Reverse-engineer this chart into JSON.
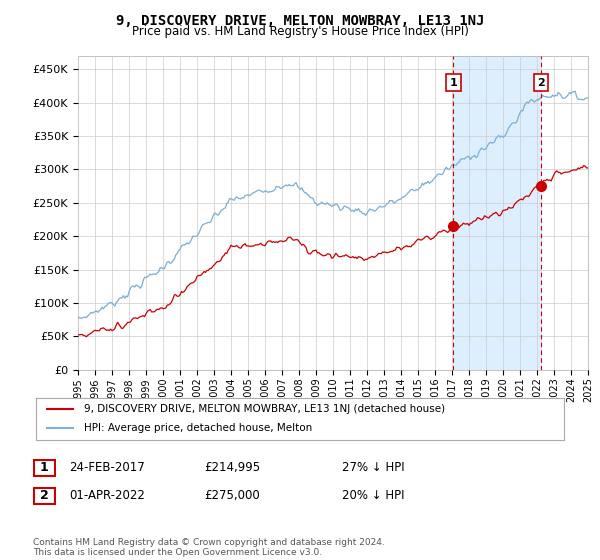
{
  "title": "9, DISCOVERY DRIVE, MELTON MOWBRAY, LE13 1NJ",
  "subtitle": "Price paid vs. HM Land Registry's House Price Index (HPI)",
  "ylim": [
    0,
    470000
  ],
  "yticks": [
    0,
    50000,
    100000,
    150000,
    200000,
    250000,
    300000,
    350000,
    400000,
    450000
  ],
  "ytick_labels": [
    "£0",
    "£50K",
    "£100K",
    "£150K",
    "£200K",
    "£250K",
    "£300K",
    "£350K",
    "£400K",
    "£450K"
  ],
  "hpi_color": "#7bafd4",
  "price_color": "#cc0000",
  "legend_label_price": "9, DISCOVERY DRIVE, MELTON MOWBRAY, LE13 1NJ (detached house)",
  "legend_label_hpi": "HPI: Average price, detached house, Melton",
  "table_row1": [
    "1",
    "24-FEB-2017",
    "£214,995",
    "27% ↓ HPI"
  ],
  "table_row2": [
    "2",
    "01-APR-2022",
    "£275,000",
    "20% ↓ HPI"
  ],
  "footnote": "Contains HM Land Registry data © Crown copyright and database right 2024.\nThis data is licensed under the Open Government Licence v3.0.",
  "background_color": "#ffffff",
  "grid_color": "#cccccc",
  "shade_color": "#ddeeff"
}
